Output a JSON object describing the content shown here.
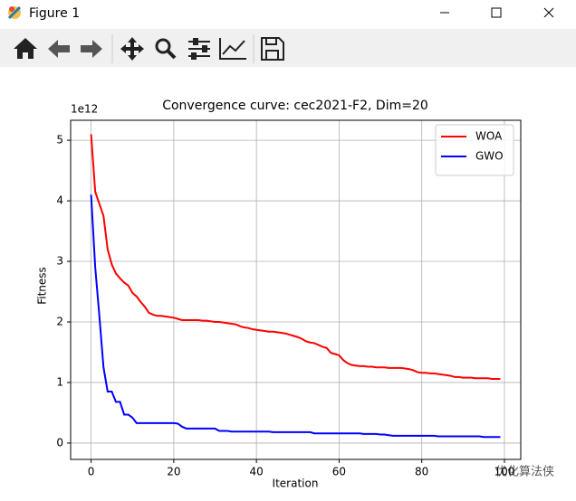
{
  "window": {
    "title": "Figure 1"
  },
  "watermark": "优化算法侠",
  "chart_data": {
    "type": "line",
    "title": "Convergence curve: cec2021-F2, Dim=20",
    "xlabel": "Iteration",
    "ylabel": "Fitness",
    "y_offset_label": "1e12",
    "x": [
      0,
      1,
      2,
      3,
      4,
      5,
      6,
      7,
      8,
      9,
      10,
      11,
      12,
      13,
      14,
      15,
      16,
      17,
      18,
      19,
      20,
      21,
      22,
      23,
      24,
      25,
      26,
      27,
      28,
      29,
      30,
      31,
      32,
      33,
      34,
      35,
      36,
      37,
      38,
      39,
      40,
      41,
      42,
      43,
      44,
      45,
      46,
      47,
      48,
      49,
      50,
      51,
      52,
      53,
      54,
      55,
      56,
      57,
      58,
      59,
      60,
      61,
      62,
      63,
      64,
      65,
      66,
      67,
      68,
      69,
      70,
      71,
      72,
      73,
      74,
      75,
      76,
      77,
      78,
      79,
      80,
      81,
      82,
      83,
      84,
      85,
      86,
      87,
      88,
      89,
      90,
      91,
      92,
      93,
      94,
      95,
      96,
      97,
      98,
      99
    ],
    "series": [
      {
        "name": "WOA",
        "color": "#ff0000",
        "values": [
          5.1,
          4.15,
          3.95,
          3.75,
          3.2,
          2.95,
          2.8,
          2.72,
          2.65,
          2.6,
          2.48,
          2.42,
          2.33,
          2.25,
          2.15,
          2.12,
          2.1,
          2.1,
          2.09,
          2.08,
          2.07,
          2.05,
          2.03,
          2.03,
          2.03,
          2.03,
          2.03,
          2.02,
          2.02,
          2.01,
          2.0,
          2.0,
          1.99,
          1.98,
          1.97,
          1.96,
          1.93,
          1.91,
          1.9,
          1.88,
          1.87,
          1.86,
          1.85,
          1.84,
          1.84,
          1.83,
          1.82,
          1.81,
          1.79,
          1.77,
          1.75,
          1.72,
          1.68,
          1.66,
          1.65,
          1.62,
          1.59,
          1.57,
          1.49,
          1.47,
          1.45,
          1.37,
          1.32,
          1.29,
          1.28,
          1.27,
          1.27,
          1.26,
          1.26,
          1.25,
          1.25,
          1.25,
          1.24,
          1.24,
          1.24,
          1.24,
          1.23,
          1.22,
          1.2,
          1.17,
          1.16,
          1.16,
          1.15,
          1.15,
          1.14,
          1.13,
          1.12,
          1.11,
          1.09,
          1.09,
          1.08,
          1.08,
          1.08,
          1.07,
          1.07,
          1.07,
          1.07,
          1.06,
          1.06,
          1.06
        ]
      },
      {
        "name": "GWO",
        "color": "#0000ff",
        "values": [
          4.1,
          2.9,
          2.1,
          1.25,
          0.85,
          0.85,
          0.68,
          0.68,
          0.47,
          0.47,
          0.42,
          0.33,
          0.33,
          0.33,
          0.33,
          0.33,
          0.33,
          0.33,
          0.33,
          0.33,
          0.33,
          0.32,
          0.27,
          0.24,
          0.24,
          0.24,
          0.24,
          0.24,
          0.24,
          0.24,
          0.24,
          0.2,
          0.2,
          0.2,
          0.19,
          0.19,
          0.19,
          0.19,
          0.19,
          0.19,
          0.19,
          0.19,
          0.19,
          0.19,
          0.18,
          0.18,
          0.18,
          0.18,
          0.18,
          0.18,
          0.18,
          0.18,
          0.18,
          0.18,
          0.16,
          0.16,
          0.16,
          0.16,
          0.16,
          0.16,
          0.16,
          0.16,
          0.16,
          0.16,
          0.16,
          0.16,
          0.15,
          0.15,
          0.15,
          0.15,
          0.14,
          0.14,
          0.13,
          0.12,
          0.12,
          0.12,
          0.12,
          0.12,
          0.12,
          0.12,
          0.12,
          0.12,
          0.12,
          0.12,
          0.11,
          0.11,
          0.11,
          0.11,
          0.11,
          0.11,
          0.11,
          0.11,
          0.11,
          0.11,
          0.11,
          0.1,
          0.1,
          0.1,
          0.1,
          0.1
        ]
      }
    ],
    "xlim": [
      -4.95,
      103.95
    ],
    "xticks": [
      0,
      20,
      40,
      60,
      80,
      100
    ],
    "ylim": [
      -0.27,
      5.33
    ],
    "yticks": [
      0,
      1,
      2,
      3,
      4,
      5
    ],
    "grid": true,
    "legend": "upper right"
  }
}
